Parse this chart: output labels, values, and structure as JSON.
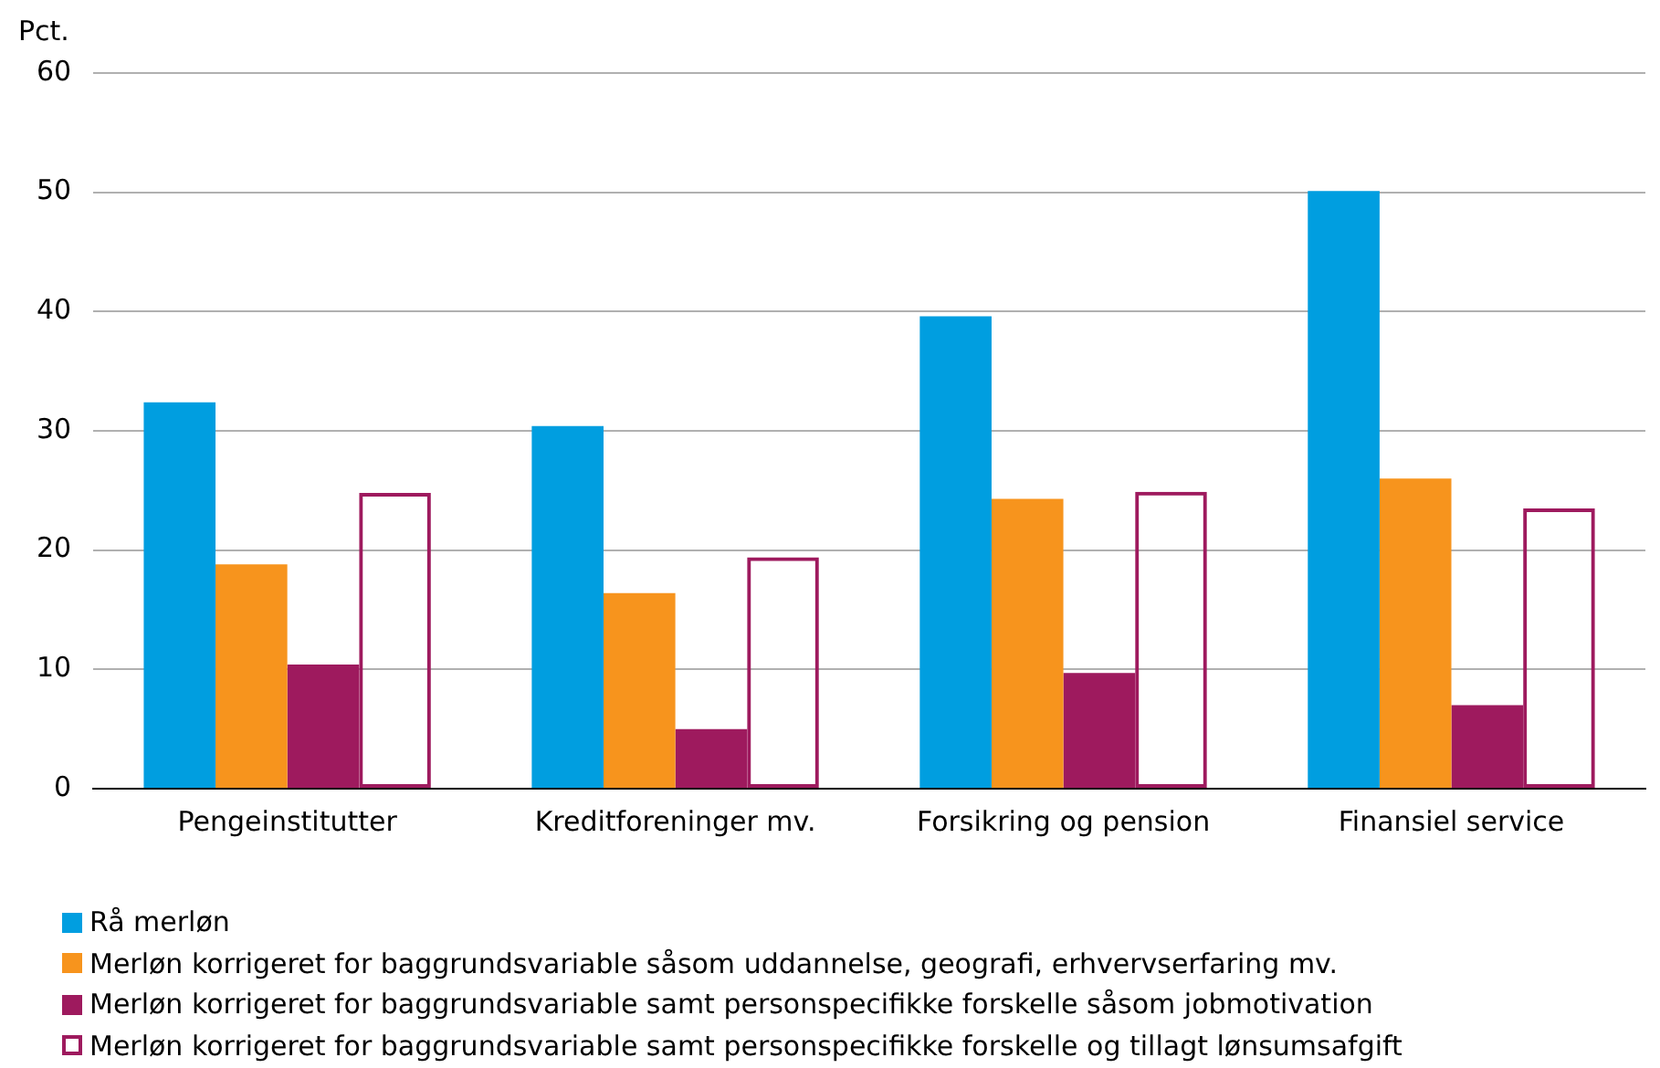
{
  "chart_data": {
    "type": "bar",
    "ylabel": "Pct.",
    "categories": [
      "Pengeinstitutter",
      "Kreditforeninger mv.",
      "Forsikring og pension",
      "Finansiel service"
    ],
    "series": [
      {
        "name": "Rå merløn",
        "color": "#009ee0",
        "values": [
          32.4,
          30.4,
          39.6,
          50.1
        ]
      },
      {
        "name": "Merløn korrigeret for baggrundsvariable såsom uddannelse, geografi, erhvervserfaring mv.",
        "color": "#f7941d",
        "values": [
          18.8,
          16.4,
          24.3,
          26.0
        ]
      },
      {
        "name": "Merløn korrigeret for baggrundsvariable samt personspecifikke forskelle såsom jobmotivation",
        "color": "#9e1a5e",
        "values": [
          10.4,
          5.0,
          9.7,
          7.0
        ]
      },
      {
        "name": "Merløn korrigeret for baggrundsvariable samt personspecifikke forskelle og tillagt lønsumsafgift",
        "color": "#9e1a5e",
        "line_style": "dashed",
        "values": [
          24.8,
          19.4,
          24.9,
          23.5
        ]
      }
    ],
    "ylim": [
      0,
      60
    ],
    "yticks": [
      0,
      10,
      20,
      30,
      40,
      50,
      60
    ],
    "grid": "y",
    "legend": "bottom"
  }
}
